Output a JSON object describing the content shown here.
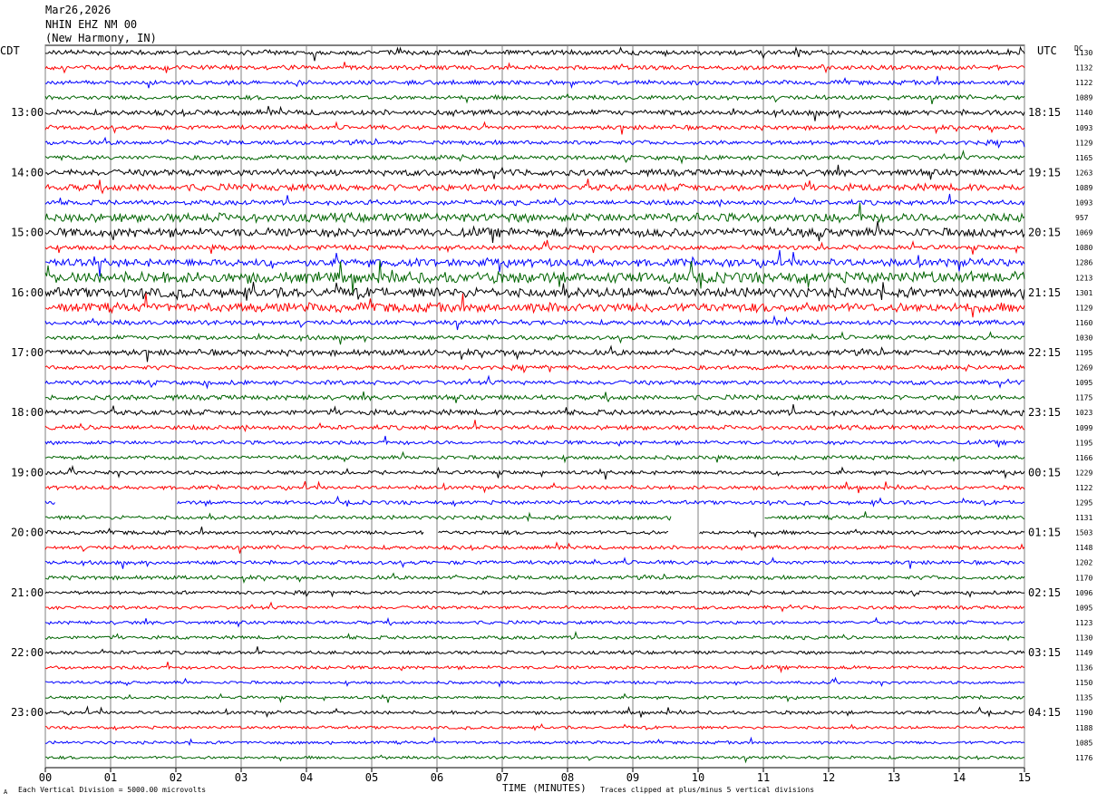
{
  "header": {
    "date": "Mar26,2026",
    "station": "NHIN EHZ NM 00",
    "location": "(New Harmony, IN)"
  },
  "left_tz": "CDT",
  "right_tz": "UTC",
  "dc_label": "DC",
  "footer": {
    "scale_text": "Each Vertical Division = 5000.00 microvolts",
    "axis_title": "TIME (MINUTES)",
    "clip_text": "Traces clipped at plus/minus 5 vertical divisions",
    "corner_mark": "A"
  },
  "chart_data": {
    "type": "line",
    "title": "",
    "xlabel": "TIME (MINUTES)",
    "xlim": [
      0,
      15
    ],
    "x_ticks": [
      "00",
      "01",
      "02",
      "03",
      "04",
      "05",
      "06",
      "07",
      "08",
      "09",
      "10",
      "11",
      "12",
      "13",
      "14",
      "15"
    ],
    "trace_colors": [
      "#000000",
      "#ff0000",
      "#0000ff",
      "#006400"
    ],
    "left_time_labels": [
      "13:00",
      "14:00",
      "15:00",
      "16:00",
      "17:00",
      "18:00",
      "19:00",
      "20:00",
      "21:00",
      "22:00",
      "23:00"
    ],
    "right_time_labels": [
      "18:15",
      "19:15",
      "20:15",
      "21:15",
      "22:15",
      "23:15",
      "00:15",
      "01:15",
      "02:15",
      "03:15",
      "04:15"
    ],
    "dc_offsets": [
      "1130",
      "1132",
      "1122",
      "1089",
      "1140",
      "1093",
      "1129",
      "1165",
      "1263",
      "1089",
      "1093",
      "957",
      "1069",
      "1080",
      "1286",
      "1213",
      "1301",
      "1129",
      "1160",
      "1030",
      "1195",
      "1269",
      "1095",
      "1175",
      "1023",
      "1099",
      "1195",
      "1166",
      "1229",
      "1122",
      "1295",
      "1131",
      "1503",
      "1148",
      "1202",
      "1170",
      "1096",
      "1095",
      "1123",
      "1130",
      "1149",
      "1136",
      "1150",
      "1135",
      "1190",
      "1188",
      "1085",
      "1176"
    ],
    "amplitude": [
      1.0,
      0.9,
      0.9,
      0.9,
      1.1,
      0.9,
      0.9,
      0.9,
      1.3,
      1.4,
      1.0,
      1.8,
      1.8,
      1.0,
      1.6,
      2.3,
      2.0,
      1.9,
      1.0,
      0.9,
      1.2,
      0.9,
      0.9,
      1.0,
      1.1,
      0.9,
      0.8,
      0.8,
      0.8,
      0.8,
      0.8,
      0.8,
      0.8,
      0.8,
      0.8,
      0.8,
      0.7,
      0.7,
      0.7,
      0.7,
      0.7,
      0.7,
      0.6,
      0.6,
      0.7,
      0.6,
      0.6,
      0.6
    ],
    "gaps": [
      {
        "trace": 30,
        "from": 0.15,
        "to": 2.0
      },
      {
        "trace": 31,
        "from": 9.6,
        "to": 11.0
      },
      {
        "trace": 32,
        "from": 5.8,
        "to": 6.0
      },
      {
        "trace": 32,
        "from": 9.55,
        "to": 10.0
      }
    ]
  }
}
